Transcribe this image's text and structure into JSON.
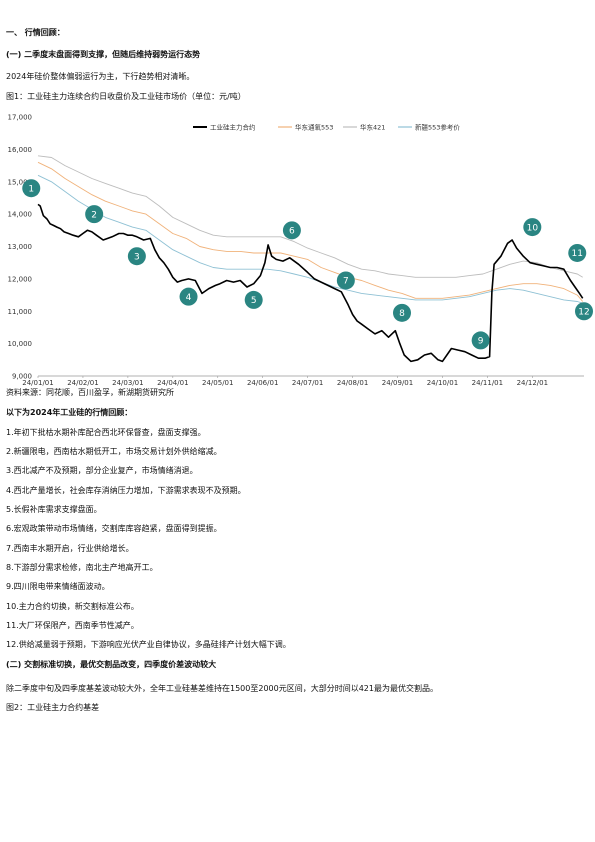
{
  "heading1": "一、 行情回顾：",
  "heading2": "(一) 二季度末盘面得到支撑，但随后维持弱势运行态势",
  "intro": "2024年硅价整体偏弱运行为主，下行趋势相对清晰。",
  "fig1_caption": "图1：工业硅主力连续合约日收盘价及工业硅市场价（单位：元/吨）",
  "source": "资料来源：同花顺，百川盈孚，新湖期货研究所",
  "review_title": "以下为2024年工业硅的行情回顾：",
  "review_items": [
    "1.年初下批枯水期补库配合西北环保督查，盘面支撑强。",
    "2.新疆限电，西南枯水期低开工，市场交易计划外供给缩减。",
    "3.西北减产不及预期，部分企业复产，市场情绪消退。",
    "4.西北产量增长，社会库存消纳压力增加，下游需求表现不及预期。",
    "5.长假补库需求支撑盘面。",
    "6.宏观政策带动市场情绪，交割库库容趋紧，盘面得到提振。",
    "7.西南丰水期开启，行业供给增长。",
    "8.下游部分需求检修，南北主产地高开工。",
    "9.四川限电带来情绪面波动。",
    "10.主力合约切换，新交割标准公布。",
    "11.大厂环保限产，西南季节性减产。",
    "12.供给减量弱于预期，下游响应光伏产业自律协议，多晶硅排产计划大幅下调。"
  ],
  "heading3": "(二) 交割标准切换，最优交割品改变，四季度价差波动较大",
  "para2": "除二季度中旬及四季度基差波动较大外，全年工业硅基差维持在1500至2000元区间，大部分时间以421最为最优交割品。",
  "fig2_caption": "图2：工业硅主力合约基差",
  "chart_data": {
    "type": "line",
    "title": "",
    "xlabel": "",
    "ylabel": "",
    "x_ticks": [
      "24/01/01",
      "24/02/01",
      "24/03/01",
      "24/04/01",
      "24/05/01",
      "24/06/01",
      "24/07/01",
      "24/08/01",
      "24/09/01",
      "24/10/01",
      "24/11/01",
      "24/12/01"
    ],
    "y_ticks": [
      "9,000",
      "10,000",
      "11,000",
      "12,000",
      "13,000",
      "14,000",
      "15,000",
      "16,000",
      "17,000"
    ],
    "ylim": [
      9000,
      17000
    ],
    "xlim_month": [
      0,
      12.15
    ],
    "grid": false,
    "legend_position": "top",
    "series": [
      {
        "name": "工业硅主力合约",
        "color": "#000000",
        "x": [
          0,
          0.05,
          0.12,
          0.2,
          0.27,
          0.35,
          0.42,
          0.5,
          0.58,
          0.68,
          0.78,
          0.9,
          1.0,
          1.1,
          1.2,
          1.3,
          1.45,
          1.55,
          1.65,
          1.8,
          1.9,
          2.0,
          2.1,
          2.2,
          2.35,
          2.5,
          2.6,
          2.7,
          2.8,
          2.9,
          3.0,
          3.1,
          3.2,
          3.35,
          3.5,
          3.65,
          3.8,
          3.95,
          4.05,
          4.2,
          4.35,
          4.5,
          4.65,
          4.8,
          4.95,
          5.05,
          5.12,
          5.2,
          5.3,
          5.45,
          5.6,
          5.8,
          6.0,
          6.15,
          6.3,
          6.45,
          6.6,
          6.75,
          6.9,
          7.0,
          7.1,
          7.2,
          7.35,
          7.5,
          7.65,
          7.8,
          7.95,
          8.05,
          8.15,
          8.3,
          8.45,
          8.6,
          8.75,
          8.9,
          9.0,
          9.1,
          9.2,
          9.35,
          9.5,
          9.65,
          9.8,
          9.95,
          10.05,
          10.1,
          10.15,
          10.3,
          10.45,
          10.55,
          10.65,
          10.8,
          10.95,
          11.1,
          11.25,
          11.4,
          11.55,
          11.7,
          11.85,
          11.95,
          12.05,
          12.12
        ],
        "y": [
          14300,
          14250,
          13950,
          13850,
          13700,
          13650,
          13600,
          13550,
          13450,
          13400,
          13350,
          13300,
          13400,
          13500,
          13450,
          13350,
          13200,
          13250,
          13300,
          13400,
          13400,
          13350,
          13350,
          13300,
          13200,
          13250,
          12900,
          12650,
          12500,
          12300,
          12050,
          11900,
          11950,
          12000,
          11950,
          11550,
          11700,
          11800,
          11850,
          11950,
          11900,
          11950,
          11750,
          11850,
          12100,
          12500,
          13050,
          12700,
          12600,
          12550,
          12650,
          12450,
          12200,
          12000,
          11900,
          11800,
          11700,
          11600,
          11200,
          10900,
          10700,
          10600,
          10450,
          10300,
          10400,
          10200,
          10400,
          10000,
          9650,
          9450,
          9500,
          9650,
          9700,
          9500,
          9450,
          9650,
          9850,
          9800,
          9750,
          9650,
          9550,
          9550,
          9600,
          11600,
          12450,
          12700,
          13100,
          13200,
          12950,
          12700,
          12500,
          12450,
          12400,
          12350,
          12350,
          12300,
          11950,
          11750,
          11550,
          11400
        ]
      },
      {
        "name": "华东通氧553",
        "color": "#f0b27a",
        "x": [
          0,
          0.3,
          0.6,
          0.9,
          1.2,
          1.5,
          1.8,
          2.1,
          2.4,
          2.7,
          3.0,
          3.3,
          3.6,
          3.9,
          4.2,
          4.5,
          4.8,
          5.1,
          5.4,
          5.7,
          6.0,
          6.3,
          6.6,
          6.9,
          7.2,
          7.5,
          7.8,
          8.1,
          8.4,
          8.7,
          9.0,
          9.3,
          9.6,
          9.9,
          10.2,
          10.5,
          10.8,
          11.1,
          11.4,
          11.7,
          12.0,
          12.12
        ],
        "y": [
          15600,
          15400,
          15100,
          14850,
          14600,
          14400,
          14250,
          14100,
          14000,
          13700,
          13400,
          13250,
          13000,
          12900,
          12850,
          12850,
          12800,
          12800,
          12800,
          12700,
          12600,
          12350,
          12200,
          12050,
          11950,
          11800,
          11650,
          11550,
          11400,
          11400,
          11400,
          11450,
          11500,
          11600,
          11700,
          11800,
          11850,
          11850,
          11800,
          11700,
          11500,
          11300
        ]
      },
      {
        "name": "华东421",
        "color": "#bdbdbd",
        "x": [
          0,
          0.3,
          0.6,
          0.9,
          1.2,
          1.5,
          1.8,
          2.1,
          2.4,
          2.7,
          3.0,
          3.3,
          3.6,
          3.9,
          4.2,
          4.5,
          4.8,
          5.1,
          5.4,
          5.7,
          6.0,
          6.3,
          6.6,
          6.9,
          7.2,
          7.5,
          7.8,
          8.1,
          8.4,
          8.7,
          9.0,
          9.3,
          9.6,
          9.9,
          10.2,
          10.5,
          10.8,
          11.1,
          11.4,
          11.7,
          12.0,
          12.12
        ],
        "y": [
          15800,
          15750,
          15500,
          15300,
          15100,
          14950,
          14800,
          14650,
          14550,
          14250,
          13900,
          13700,
          13500,
          13350,
          13300,
          13300,
          13300,
          13300,
          13300,
          13150,
          12950,
          12800,
          12650,
          12450,
          12300,
          12250,
          12150,
          12100,
          12050,
          12050,
          12050,
          12050,
          12100,
          12150,
          12300,
          12450,
          12550,
          12500,
          12350,
          12250,
          12150,
          12050
        ]
      },
      {
        "name": "新疆553参考价",
        "color": "#8fc1d4",
        "x": [
          0,
          0.3,
          0.6,
          0.9,
          1.2,
          1.5,
          1.8,
          2.1,
          2.4,
          2.7,
          3.0,
          3.3,
          3.6,
          3.9,
          4.2,
          4.5,
          4.8,
          5.1,
          5.4,
          5.7,
          6.0,
          6.3,
          6.6,
          6.9,
          7.2,
          7.5,
          7.8,
          8.1,
          8.4,
          8.7,
          9.0,
          9.3,
          9.6,
          9.9,
          10.2,
          10.5,
          10.8,
          11.1,
          11.4,
          11.7,
          12.0,
          12.12
        ],
        "y": [
          15200,
          15000,
          14700,
          14400,
          14150,
          13900,
          13750,
          13600,
          13500,
          13200,
          12900,
          12700,
          12500,
          12350,
          12300,
          12300,
          12300,
          12300,
          12250,
          12150,
          12050,
          11900,
          11750,
          11650,
          11550,
          11500,
          11450,
          11400,
          11350,
          11350,
          11350,
          11400,
          11450,
          11550,
          11650,
          11700,
          11650,
          11550,
          11450,
          11350,
          11300,
          11250
        ]
      }
    ],
    "markers": [
      {
        "label": "1",
        "x": -0.15,
        "y": 14800
      },
      {
        "label": "2",
        "x": 1.25,
        "y": 14000
      },
      {
        "label": "3",
        "x": 2.2,
        "y": 12700
      },
      {
        "label": "4",
        "x": 3.35,
        "y": 11450
      },
      {
        "label": "5",
        "x": 4.8,
        "y": 11350
      },
      {
        "label": "6",
        "x": 5.65,
        "y": 13500
      },
      {
        "label": "7",
        "x": 6.85,
        "y": 11950
      },
      {
        "label": "8",
        "x": 8.1,
        "y": 10950
      },
      {
        "label": "9",
        "x": 9.85,
        "y": 10100
      },
      {
        "label": "10",
        "x": 11.0,
        "y": 13600
      },
      {
        "label": "11",
        "x": 12.0,
        "y": 12800
      },
      {
        "label": "12",
        "x": 13.05,
        "y": 11000
      }
    ],
    "marker_color": "#2a8582"
  }
}
